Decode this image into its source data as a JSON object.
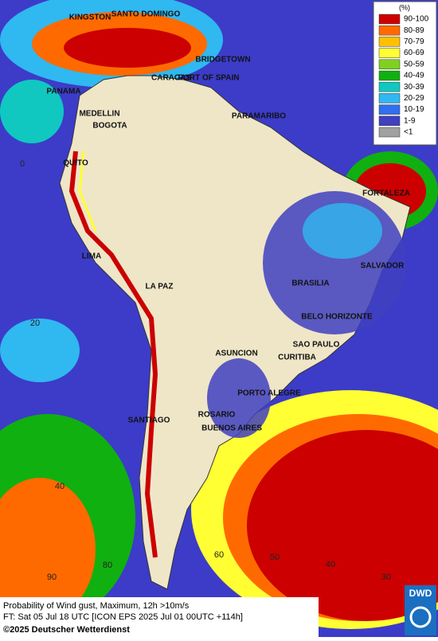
{
  "map": {
    "cities": [
      "KINGSTON",
      "SANTO DOMINGO",
      "BRIDGETOWN",
      "CARACAS",
      "PORT OF SPAIN",
      "PANAMA",
      "MEDELLIN",
      "BOGOTA",
      "PARAMARIBO",
      "QUITO",
      "FORTALEZA",
      "LIMA",
      "SALVADOR",
      "BRASILIA",
      "LA PAZ",
      "BELO HORIZONTE",
      "SAO PAULO",
      "ASUNCION",
      "CURITIBA",
      "PORTO ALEGRE",
      "SANTIAGO",
      "ROSARIO",
      "BUENOS AIRES"
    ],
    "grid_labels": [
      0,
      20,
      40,
      90,
      80,
      60,
      50,
      40,
      30
    ]
  },
  "legend": {
    "title": "(%)",
    "items": [
      {
        "label": "90-100",
        "color": "#cc0000"
      },
      {
        "label": "80-89",
        "color": "#ff6a00"
      },
      {
        "label": "70-79",
        "color": "#ffc000"
      },
      {
        "label": "60-69",
        "color": "#ffff33"
      },
      {
        "label": "50-59",
        "color": "#80d020"
      },
      {
        "label": "40-49",
        "color": "#10b010"
      },
      {
        "label": "30-39",
        "color": "#10c8c0"
      },
      {
        "label": "20-29",
        "color": "#30b8f0"
      },
      {
        "label": "10-19",
        "color": "#3070f0"
      },
      {
        "label": "1-9",
        "color": "#4040c0"
      },
      {
        "label": "<1",
        "color": "#a0a0a0"
      }
    ]
  },
  "footer": {
    "line1": "Probability of Wind gust, Maximum, 12h >10m/s",
    "line2": "FT: Sat 05 Jul 18 UTC [ICON EPS 2025 Jul 01 00UTC +114h]",
    "copyright": "©2025 Deutscher Wetterdienst",
    "logo": "DWD"
  }
}
